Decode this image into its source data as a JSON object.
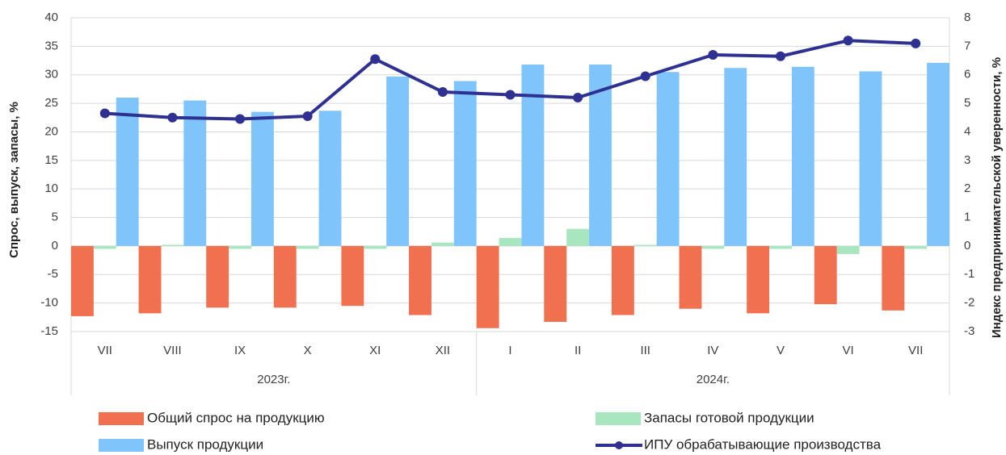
{
  "chart_data": {
    "type": "bar",
    "categories": [
      "VII",
      "VIII",
      "IX",
      "X",
      "XI",
      "XII",
      "I",
      "II",
      "III",
      "IV",
      "V",
      "VI",
      "VII"
    ],
    "groups": [
      {
        "label": "2023г.",
        "span": 6
      },
      {
        "label": "2024г.",
        "span": 7
      }
    ],
    "y_label": "Спрос, выпуск, запасы, %",
    "y2_label": "Индекс предпринимательской уверенности, %",
    "ylim": [
      -15,
      40
    ],
    "yticks": [
      -15,
      -10,
      -5,
      0,
      5,
      10,
      15,
      20,
      25,
      30,
      35,
      40
    ],
    "y2lim": [
      -3,
      8
    ],
    "y2ticks": [
      -3,
      -2,
      -1,
      0,
      1,
      2,
      3,
      4,
      5,
      6,
      7,
      8
    ],
    "grid": true,
    "legend": "bottom",
    "series": [
      {
        "name": "Общий спрос на продукцию",
        "type": "bar",
        "color": "#f07050",
        "values": [
          -12.3,
          -11.8,
          -10.8,
          -10.8,
          -10.5,
          -12.1,
          -14.4,
          -13.3,
          -12.1,
          -11.0,
          -11.8,
          -10.2,
          -11.3
        ]
      },
      {
        "name": "Запасы готовой продукции",
        "type": "bar",
        "color": "#a8e6c0",
        "values": [
          -0.5,
          0.2,
          -0.5,
          -0.5,
          -0.5,
          0.6,
          1.4,
          3.0,
          0.2,
          -0.5,
          -0.5,
          -1.4,
          -0.5
        ]
      },
      {
        "name": "Выпуск продукции",
        "type": "bar",
        "color": "#80c4fc",
        "values": [
          26.0,
          25.5,
          23.5,
          23.7,
          29.7,
          28.9,
          31.8,
          31.8,
          30.5,
          31.2,
          31.4,
          30.6,
          32.1
        ]
      },
      {
        "name": "ИПУ обрабатывающие производства",
        "type": "line",
        "axis": "y2",
        "color": "#2e3192",
        "values": [
          4.65,
          4.5,
          4.45,
          4.55,
          6.55,
          5.4,
          5.3,
          5.2,
          5.95,
          6.7,
          6.65,
          7.2,
          7.1
        ]
      }
    ]
  }
}
